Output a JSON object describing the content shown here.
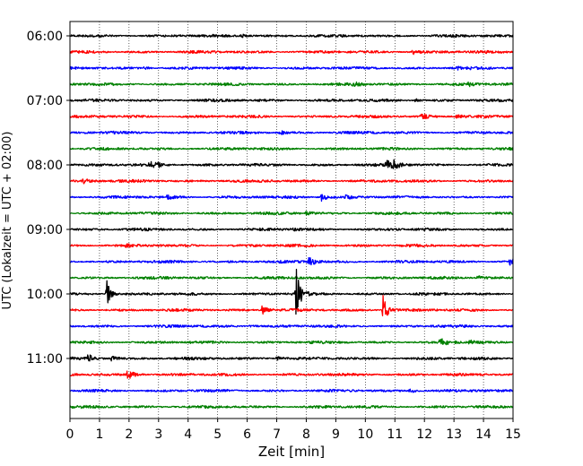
{
  "chart_data": {
    "type": "line",
    "title": "",
    "xlabel": "Zeit  [min]",
    "ylabel": "UTC (Lokalzeit = UTC + 02:00)",
    "xlim": [
      0,
      15
    ],
    "x_ticks": [
      "0",
      "1",
      "2",
      "3",
      "4",
      "5",
      "6",
      "7",
      "8",
      "9",
      "10",
      "11",
      "12",
      "13",
      "14",
      "15"
    ],
    "y_ticks": [
      "06:00",
      "07:00",
      "08:00",
      "09:00",
      "10:00",
      "11:00"
    ],
    "grid": "vertical dotted",
    "trace_interval_minutes": 15,
    "colors": [
      "#000000",
      "#ff0000",
      "#0000ff",
      "#008000"
    ],
    "traces": [
      {
        "start": "06:00",
        "color": "#000000",
        "events": [
          {
            "t": 5.8,
            "amp": 0.15
          }
        ]
      },
      {
        "start": "06:15",
        "color": "#ff0000",
        "events": [
          {
            "t": 11.6,
            "amp": 0.2
          }
        ]
      },
      {
        "start": "06:30",
        "color": "#0000ff",
        "events": [
          {
            "t": 2.5,
            "amp": 0.12
          },
          {
            "t": 13.1,
            "amp": 0.12
          }
        ]
      },
      {
        "start": "06:45",
        "color": "#008000",
        "events": [
          {
            "t": 9.6,
            "amp": 0.2
          },
          {
            "t": 13.5,
            "amp": 0.15
          }
        ]
      },
      {
        "start": "07:00",
        "color": "#000000",
        "events": [
          {
            "t": 11.7,
            "amp": 0.12
          }
        ]
      },
      {
        "start": "07:15",
        "color": "#ff0000",
        "events": [
          {
            "t": 11.9,
            "amp": 0.3
          },
          {
            "t": 13.1,
            "amp": 0.2
          }
        ]
      },
      {
        "start": "07:30",
        "color": "#0000ff",
        "events": [
          {
            "t": 7.1,
            "amp": 0.15
          }
        ]
      },
      {
        "start": "07:45",
        "color": "#008000",
        "events": []
      },
      {
        "start": "08:00",
        "color": "#000000",
        "events": [
          {
            "t": 2.7,
            "amp": 0.35
          },
          {
            "t": 2.95,
            "amp": 0.3
          },
          {
            "t": 10.7,
            "amp": 0.45
          },
          {
            "t": 10.95,
            "amp": 0.35
          }
        ]
      },
      {
        "start": "08:15",
        "color": "#ff0000",
        "events": [
          {
            "t": 0.45,
            "amp": 0.3
          }
        ]
      },
      {
        "start": "08:30",
        "color": "#0000ff",
        "events": [
          {
            "t": 8.5,
            "amp": 0.4
          },
          {
            "t": 9.3,
            "amp": 0.2
          },
          {
            "t": 3.3,
            "amp": 0.15
          }
        ]
      },
      {
        "start": "08:45",
        "color": "#008000",
        "events": [
          {
            "t": 8.0,
            "amp": 0.15
          }
        ]
      },
      {
        "start": "09:00",
        "color": "#000000",
        "events": [
          {
            "t": 7.5,
            "amp": 0.12
          }
        ]
      },
      {
        "start": "09:15",
        "color": "#ff0000",
        "events": [
          {
            "t": 1.9,
            "amp": 0.1
          }
        ]
      },
      {
        "start": "09:30",
        "color": "#0000ff",
        "events": [
          {
            "t": 8.1,
            "amp": 0.45
          },
          {
            "t": 14.9,
            "amp": 0.3
          }
        ]
      },
      {
        "start": "09:45",
        "color": "#008000",
        "events": [
          {
            "t": 13.8,
            "amp": 0.2
          }
        ]
      },
      {
        "start": "10:00",
        "color": "#000000",
        "events": [
          {
            "t": 1.25,
            "amp": 1.3
          },
          {
            "t": 7.65,
            "amp": 2.6
          }
        ]
      },
      {
        "start": "10:15",
        "color": "#ff0000",
        "events": [
          {
            "t": 6.5,
            "amp": 0.4
          },
          {
            "t": 10.6,
            "amp": 1.6
          }
        ]
      },
      {
        "start": "10:30",
        "color": "#0000ff",
        "events": [
          {
            "t": 6.1,
            "amp": 0.12
          }
        ]
      },
      {
        "start": "10:45",
        "color": "#008000",
        "events": [
          {
            "t": 12.5,
            "amp": 0.4
          },
          {
            "t": 13.5,
            "amp": 0.2
          }
        ]
      },
      {
        "start": "11:00",
        "color": "#000000",
        "events": [
          {
            "t": 0.6,
            "amp": 0.4
          },
          {
            "t": 1.4,
            "amp": 0.2
          },
          {
            "t": 7.0,
            "amp": 0.2
          }
        ]
      },
      {
        "start": "11:15",
        "color": "#ff0000",
        "events": [
          {
            "t": 1.95,
            "amp": 0.5
          }
        ]
      },
      {
        "start": "11:30",
        "color": "#0000ff",
        "events": [
          {
            "t": 11.5,
            "amp": 0.2
          }
        ]
      },
      {
        "start": "11:45",
        "color": "#008000",
        "events": []
      }
    ]
  }
}
